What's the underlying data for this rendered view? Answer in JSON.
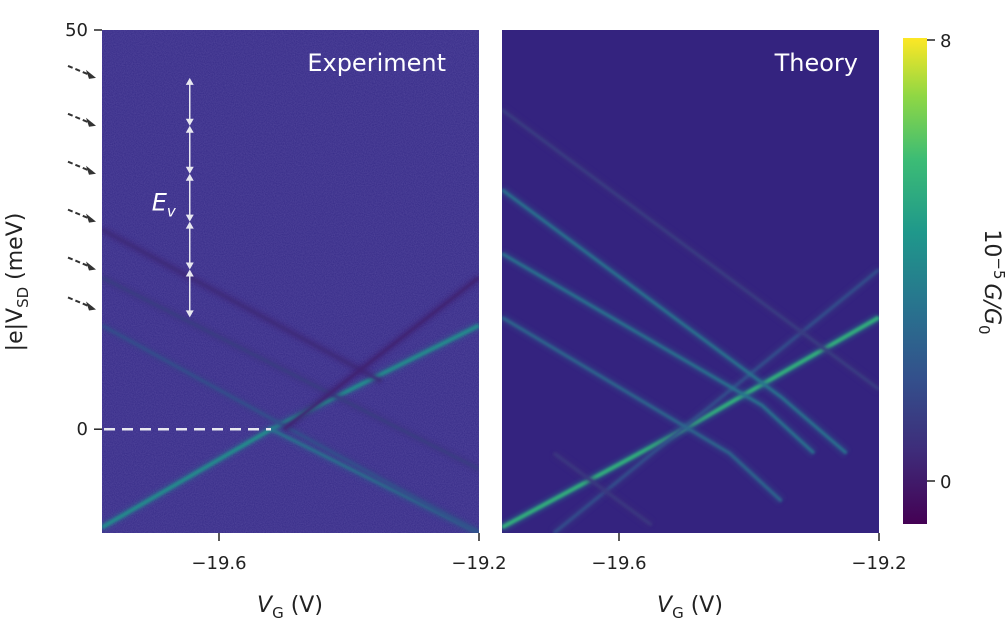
{
  "chart_data": [
    {
      "type": "heatmap",
      "panel_label": "Experiment",
      "xlabel": "V",
      "xlabel_sub": "G",
      "xlabel_unit": " (V)",
      "ylabel_prefix": "|e|V",
      "ylabel_sub": "SD",
      "ylabel_unit": " (meV)",
      "x_ticks": [
        "−19.6",
        "−19.2"
      ],
      "x_tick_values": [
        -19.6,
        -19.2
      ],
      "y_ticks": [
        "50",
        "0"
      ],
      "y_tick_values": [
        50,
        0
      ],
      "xlim": [
        -19.78,
        -19.2
      ],
      "ylim": [
        -13,
        50
      ],
      "annotation_symbol": "E",
      "annotation_sub": "v",
      "zero_line": 0,
      "excited_state_markers_meV": [
        44,
        38,
        32,
        26,
        20,
        15
      ],
      "excited_state_spacing_meV": 6,
      "lines": [
        {
          "kind": "ground-up",
          "points": [
            [
              -19.78,
              -12.3
            ],
            [
              -19.52,
              0
            ],
            [
              -19.2,
              13
            ]
          ],
          "intensity": 0.55
        },
        {
          "kind": "ground-down",
          "points": [
            [
              -19.52,
              0
            ],
            [
              -19.2,
              -13
            ]
          ],
          "intensity": 0.45
        },
        {
          "kind": "excited-down",
          "points": [
            [
              -19.78,
              13
            ],
            [
              -19.2,
              -13
            ]
          ],
          "intensity": 0.3
        },
        {
          "kind": "excited-down",
          "points": [
            [
              -19.78,
              19
            ],
            [
              -19.2,
              -5
            ]
          ],
          "intensity": 0.22
        },
        {
          "kind": "excited-down",
          "points": [
            [
              -19.78,
              25
            ],
            [
              -19.35,
              6
            ]
          ],
          "intensity": 0.15
        },
        {
          "kind": "excited-up",
          "points": [
            [
              -19.5,
              0
            ],
            [
              -19.2,
              19
            ]
          ],
          "intensity": 0.12
        }
      ]
    },
    {
      "type": "heatmap",
      "panel_label": "Theory",
      "xlabel": "V",
      "xlabel_sub": "G",
      "xlabel_unit": " (V)",
      "x_ticks": [
        "−19.6",
        "−19.2"
      ],
      "x_tick_values": [
        -19.6,
        -19.2
      ],
      "xlim": [
        -19.78,
        -19.2
      ],
      "ylim": [
        -13,
        50
      ],
      "lines": [
        {
          "kind": "ground-up",
          "points": [
            [
              -19.78,
              -12.3
            ],
            [
              -19.5,
              0
            ],
            [
              -19.2,
              14
            ]
          ],
          "intensity": 0.7
        },
        {
          "kind": "excited-up",
          "points": [
            [
              -19.7,
              -13
            ],
            [
              -19.2,
              20
            ]
          ],
          "intensity": 0.3
        },
        {
          "kind": "excited-down",
          "points": [
            [
              -19.78,
              30
            ],
            [
              -19.35,
              4
            ],
            [
              -19.25,
              -3
            ]
          ],
          "intensity": 0.45
        },
        {
          "kind": "excited-down",
          "points": [
            [
              -19.78,
              22
            ],
            [
              -19.38,
              3
            ],
            [
              -19.3,
              -3
            ]
          ],
          "intensity": 0.45
        },
        {
          "kind": "excited-down",
          "points": [
            [
              -19.78,
              14
            ],
            [
              -19.43,
              -3
            ],
            [
              -19.35,
              -9
            ]
          ],
          "intensity": 0.4
        },
        {
          "kind": "excited-down",
          "points": [
            [
              -19.78,
              40
            ],
            [
              -19.2,
              5
            ]
          ],
          "intensity": 0.22
        },
        {
          "kind": "excited-down",
          "points": [
            [
              -19.7,
              -3
            ],
            [
              -19.55,
              -12
            ]
          ],
          "intensity": 0.2
        }
      ]
    }
  ],
  "colorbar": {
    "label_prefix": "10",
    "label_exp": "−5",
    "label_G": "G",
    "label_sep": "/G",
    "label_sub": "0",
    "ticks": [
      "8",
      "0"
    ],
    "tick_values": [
      8,
      0
    ],
    "range": [
      -1,
      8
    ],
    "colormap": "viridis"
  },
  "colors": {
    "background_low": "#31196b",
    "background_mid": "#352a87",
    "dashed_line": "#e8e8f0",
    "arrow": "#e8e8f0",
    "marker_arrow": "#333333"
  }
}
